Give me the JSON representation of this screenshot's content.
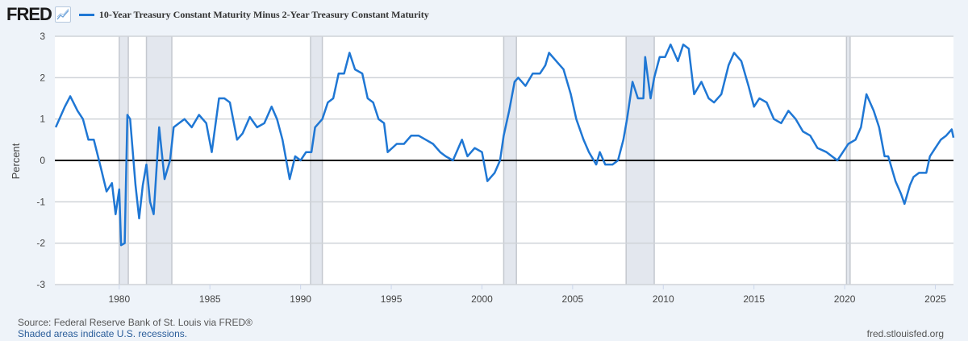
{
  "header": {
    "logo": "FRED",
    "series_title": "10-Year Treasury Constant Maturity Minus 2-Year Treasury Constant Maturity"
  },
  "footer": {
    "source": "Source: Federal Reserve Bank of St. Louis via FRED®",
    "recession_note": "Shaded areas indicate U.S. recessions.",
    "site": "fred.stlouisfed.org"
  },
  "colors": {
    "series": "#1f77d4",
    "recession": "#e3e7ee",
    "background": "#eef3f9"
  },
  "chart_data": {
    "type": "line",
    "title": "10-Year Treasury Constant Maturity Minus 2-Year Treasury Constant Maturity",
    "xlabel": "",
    "ylabel": "Percent",
    "xlim": [
      1976.45,
      2026.0
    ],
    "ylim": [
      -3,
      3
    ],
    "xticks": [
      "1980",
      "1985",
      "1990",
      "1995",
      "2000",
      "2005",
      "2010",
      "2015",
      "2020",
      "2025"
    ],
    "yticks": [
      "3",
      "2",
      "1",
      "0",
      "-1",
      "-2",
      "-3"
    ],
    "grid": true,
    "legend": "top-left",
    "recessions": [
      [
        1980.0,
        1980.5
      ],
      [
        1981.5,
        1982.9
      ],
      [
        1990.55,
        1991.2
      ],
      [
        2001.2,
        2001.9
      ],
      [
        2007.95,
        2009.5
      ],
      [
        2020.1,
        2020.3
      ]
    ],
    "series": [
      {
        "name": "10-Year Treasury Constant Maturity Minus 2-Year Treasury Constant Maturity",
        "points": [
          [
            1976.5,
            0.8
          ],
          [
            1977,
            1.3
          ],
          [
            1977.3,
            1.55
          ],
          [
            1977.7,
            1.2
          ],
          [
            1978,
            1.0
          ],
          [
            1978.3,
            0.5
          ],
          [
            1978.6,
            0.5
          ],
          [
            1979,
            -0.2
          ],
          [
            1979.3,
            -0.75
          ],
          [
            1979.6,
            -0.55
          ],
          [
            1979.8,
            -1.3
          ],
          [
            1980.0,
            -0.7
          ],
          [
            1980.1,
            -2.05
          ],
          [
            1980.3,
            -2.0
          ],
          [
            1980.45,
            1.1
          ],
          [
            1980.6,
            1.0
          ],
          [
            1980.9,
            -0.6
          ],
          [
            1981.1,
            -1.4
          ],
          [
            1981.3,
            -0.6
          ],
          [
            1981.5,
            -0.1
          ],
          [
            1981.7,
            -1.0
          ],
          [
            1981.9,
            -1.3
          ],
          [
            1982.2,
            0.8
          ],
          [
            1982.5,
            -0.45
          ],
          [
            1982.8,
            0.0
          ],
          [
            1983,
            0.8
          ],
          [
            1983.3,
            0.9
          ],
          [
            1983.6,
            1.0
          ],
          [
            1984,
            0.8
          ],
          [
            1984.4,
            1.1
          ],
          [
            1984.8,
            0.9
          ],
          [
            1985.1,
            0.2
          ],
          [
            1985.5,
            1.5
          ],
          [
            1985.8,
            1.5
          ],
          [
            1986.1,
            1.4
          ],
          [
            1986.5,
            0.5
          ],
          [
            1986.8,
            0.65
          ],
          [
            1987.2,
            1.05
          ],
          [
            1987.6,
            0.8
          ],
          [
            1988,
            0.9
          ],
          [
            1988.4,
            1.3
          ],
          [
            1988.7,
            1.0
          ],
          [
            1989,
            0.5
          ],
          [
            1989.4,
            -0.45
          ],
          [
            1989.7,
            0.1
          ],
          [
            1990,
            0.0
          ],
          [
            1990.3,
            0.2
          ],
          [
            1990.6,
            0.2
          ],
          [
            1990.8,
            0.8
          ],
          [
            1991.2,
            1.0
          ],
          [
            1991.5,
            1.4
          ],
          [
            1991.8,
            1.5
          ],
          [
            1992.1,
            2.1
          ],
          [
            1992.4,
            2.1
          ],
          [
            1992.7,
            2.6
          ],
          [
            1993,
            2.2
          ],
          [
            1993.4,
            2.1
          ],
          [
            1993.7,
            1.5
          ],
          [
            1994,
            1.4
          ],
          [
            1994.3,
            1.0
          ],
          [
            1994.6,
            0.9
          ],
          [
            1994.8,
            0.2
          ],
          [
            1995.3,
            0.4
          ],
          [
            1995.7,
            0.4
          ],
          [
            1996.1,
            0.6
          ],
          [
            1996.5,
            0.6
          ],
          [
            1996.9,
            0.5
          ],
          [
            1997.3,
            0.4
          ],
          [
            1997.7,
            0.2
          ],
          [
            1998,
            0.1
          ],
          [
            1998.4,
            0.0
          ],
          [
            1998.7,
            0.3
          ],
          [
            1998.9,
            0.5
          ],
          [
            1999.2,
            0.1
          ],
          [
            1999.6,
            0.3
          ],
          [
            2000,
            0.2
          ],
          [
            2000.3,
            -0.5
          ],
          [
            2000.7,
            -0.3
          ],
          [
            2001,
            0.0
          ],
          [
            2001.2,
            0.6
          ],
          [
            2001.5,
            1.2
          ],
          [
            2001.8,
            1.9
          ],
          [
            2002,
            2.0
          ],
          [
            2002.4,
            1.8
          ],
          [
            2002.8,
            2.1
          ],
          [
            2003.2,
            2.1
          ],
          [
            2003.5,
            2.3
          ],
          [
            2003.7,
            2.6
          ],
          [
            2004.1,
            2.4
          ],
          [
            2004.5,
            2.2
          ],
          [
            2004.9,
            1.6
          ],
          [
            2005.2,
            1.0
          ],
          [
            2005.6,
            0.5
          ],
          [
            2005.9,
            0.2
          ],
          [
            2006.3,
            -0.1
          ],
          [
            2006.5,
            0.2
          ],
          [
            2006.8,
            -0.1
          ],
          [
            2007.2,
            -0.1
          ],
          [
            2007.5,
            0.0
          ],
          [
            2007.8,
            0.5
          ],
          [
            2008.0,
            1.0
          ],
          [
            2008.3,
            1.9
          ],
          [
            2008.6,
            1.5
          ],
          [
            2008.9,
            1.5
          ],
          [
            2009.0,
            2.5
          ],
          [
            2009.3,
            1.5
          ],
          [
            2009.5,
            2.0
          ],
          [
            2009.8,
            2.5
          ],
          [
            2010.1,
            2.5
          ],
          [
            2010.4,
            2.8
          ],
          [
            2010.8,
            2.4
          ],
          [
            2011.1,
            2.8
          ],
          [
            2011.4,
            2.7
          ],
          [
            2011.7,
            1.6
          ],
          [
            2012.1,
            1.9
          ],
          [
            2012.5,
            1.5
          ],
          [
            2012.8,
            1.4
          ],
          [
            2013.2,
            1.6
          ],
          [
            2013.6,
            2.3
          ],
          [
            2013.9,
            2.6
          ],
          [
            2014.3,
            2.4
          ],
          [
            2014.7,
            1.8
          ],
          [
            2015.0,
            1.3
          ],
          [
            2015.3,
            1.5
          ],
          [
            2015.7,
            1.4
          ],
          [
            2016.1,
            1.0
          ],
          [
            2016.5,
            0.9
          ],
          [
            2016.9,
            1.2
          ],
          [
            2017.3,
            1.0
          ],
          [
            2017.7,
            0.7
          ],
          [
            2018.1,
            0.6
          ],
          [
            2018.5,
            0.3
          ],
          [
            2019,
            0.2
          ],
          [
            2019.6,
            0.0
          ],
          [
            2019.9,
            0.2
          ],
          [
            2020.2,
            0.4
          ],
          [
            2020.6,
            0.5
          ],
          [
            2020.9,
            0.8
          ],
          [
            2021.2,
            1.6
          ],
          [
            2021.6,
            1.2
          ],
          [
            2021.9,
            0.8
          ],
          [
            2022.2,
            0.1
          ],
          [
            2022.4,
            0.1
          ],
          [
            2022.8,
            -0.5
          ],
          [
            2023.1,
            -0.8
          ],
          [
            2023.3,
            -1.05
          ],
          [
            2023.6,
            -0.6
          ],
          [
            2023.8,
            -0.4
          ],
          [
            2024.1,
            -0.3
          ],
          [
            2024.5,
            -0.3
          ],
          [
            2024.7,
            0.1
          ],
          [
            2025.0,
            0.3
          ],
          [
            2025.3,
            0.5
          ],
          [
            2025.6,
            0.6
          ],
          [
            2025.9,
            0.75
          ],
          [
            2026.0,
            0.55
          ]
        ]
      }
    ]
  }
}
